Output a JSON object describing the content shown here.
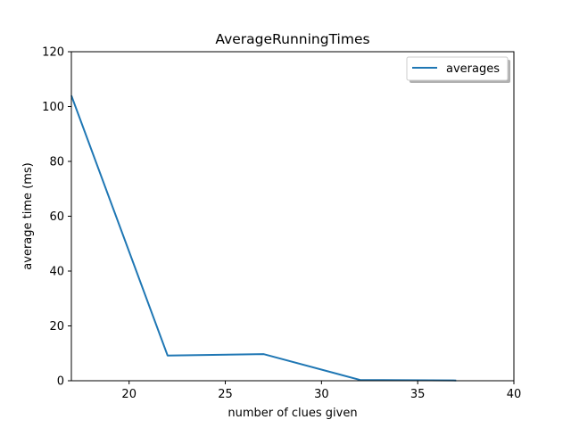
{
  "chart_data": {
    "type": "line",
    "title": "AverageRunningTimes",
    "xlabel": "number of clues given",
    "ylabel": "average time (ms)",
    "xlim": [
      17,
      40
    ],
    "ylim": [
      0,
      120
    ],
    "xticks": [
      20,
      25,
      30,
      35,
      40
    ],
    "yticks": [
      0,
      20,
      40,
      60,
      80,
      100,
      120
    ],
    "grid": false,
    "legend_position": "top-right",
    "series": [
      {
        "name": "averages",
        "color": "#1f77b4",
        "x": [
          17,
          22,
          27,
          32,
          37
        ],
        "y": [
          104,
          9.2,
          9.7,
          0.3,
          0.1
        ]
      }
    ]
  }
}
